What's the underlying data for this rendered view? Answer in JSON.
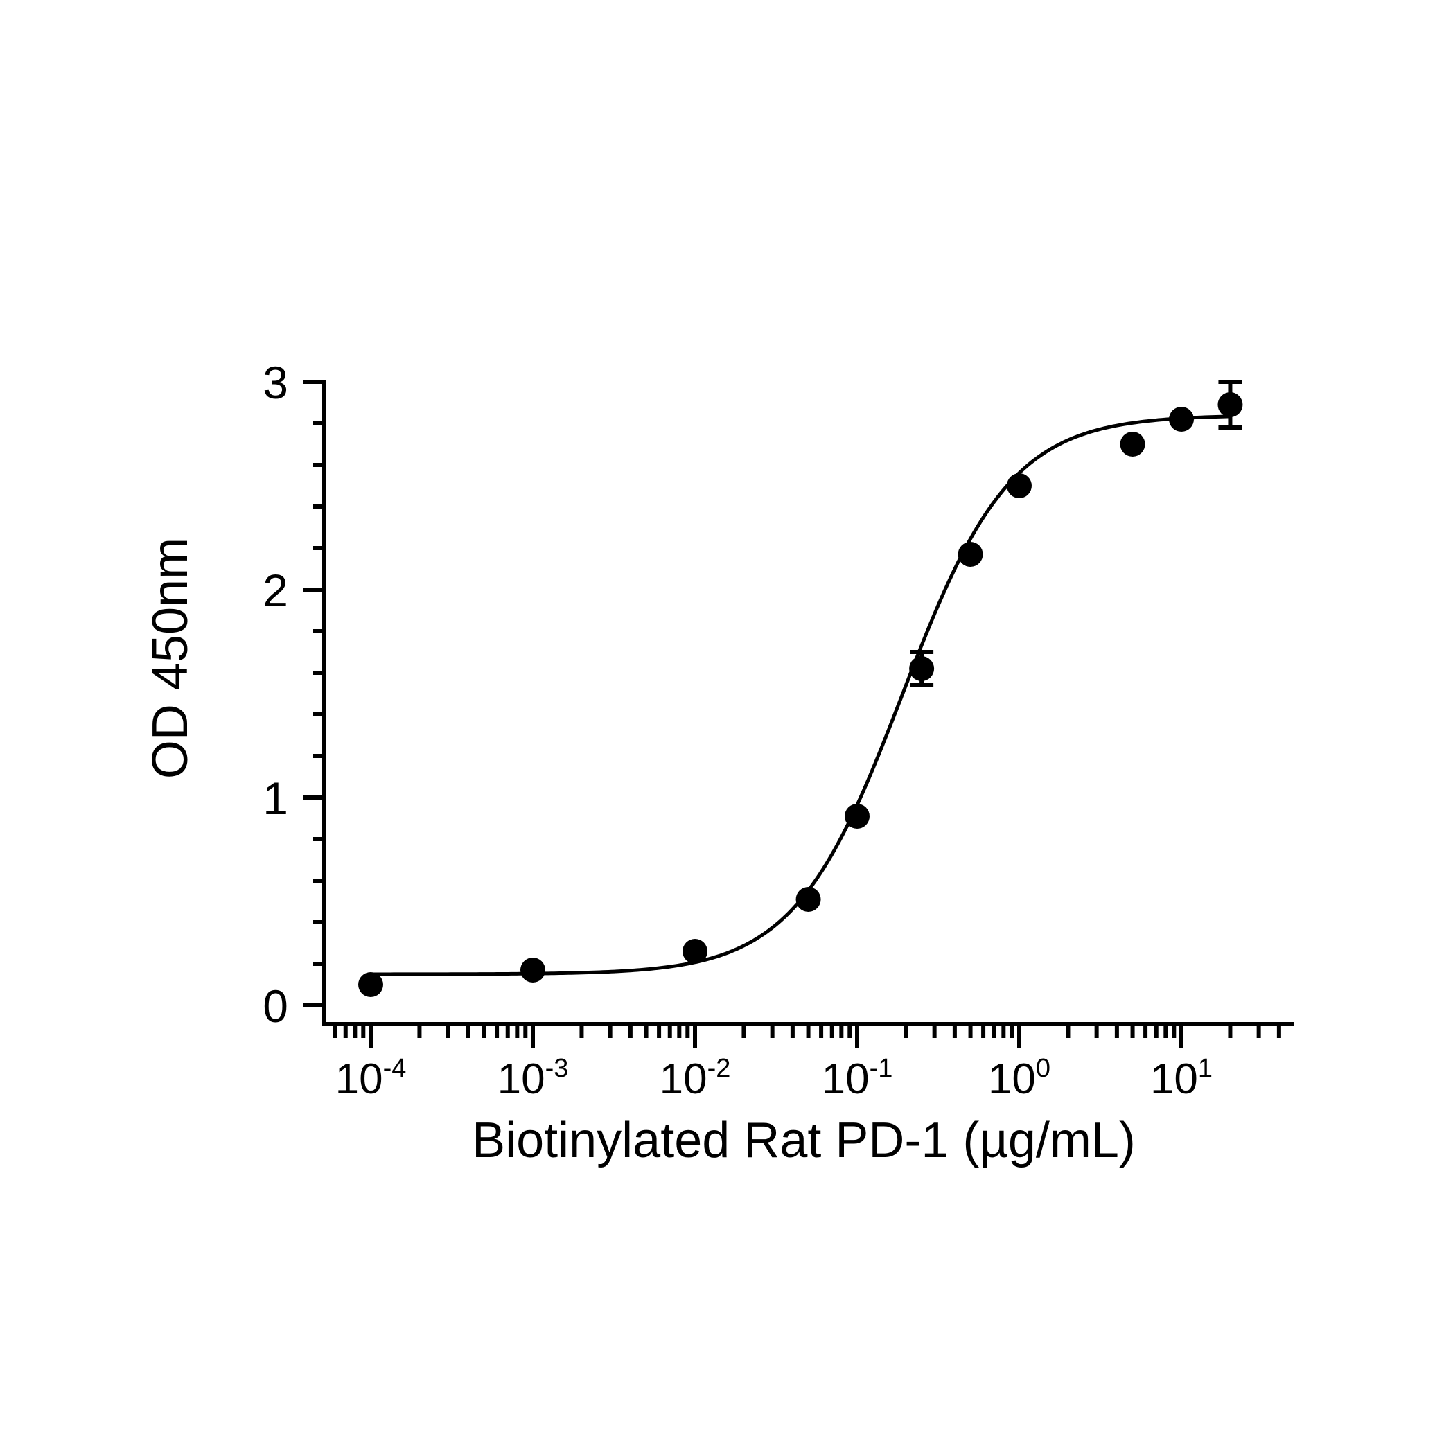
{
  "chart_data": {
    "type": "scatter",
    "title": "",
    "xlabel": "Biotinylated Rat PD-1 (µg/mL)",
    "ylabel": "OD 450nm",
    "x_scale": "log",
    "xlim": [
      5e-05,
      50
    ],
    "ylim": [
      0,
      3
    ],
    "grid": false,
    "legend": "none",
    "y_ticks": [
      {
        "value": 0,
        "label": "0"
      },
      {
        "value": 1,
        "label": "1"
      },
      {
        "value": 2,
        "label": "2"
      },
      {
        "value": 3,
        "label": "3"
      }
    ],
    "x_ticks": [
      {
        "value": 0.0001,
        "base": "10",
        "exp": "-4"
      },
      {
        "value": 0.001,
        "base": "10",
        "exp": "-3"
      },
      {
        "value": 0.01,
        "base": "10",
        "exp": "-2"
      },
      {
        "value": 0.1,
        "base": "10",
        "exp": "-1"
      },
      {
        "value": 1,
        "base": "10",
        "exp": "0"
      },
      {
        "value": 10,
        "base": "10",
        "exp": "1"
      }
    ],
    "series": [
      {
        "marker": "circle",
        "color": "#000000",
        "points": [
          {
            "x": 0.0001,
            "y": 0.1
          },
          {
            "x": 0.001,
            "y": 0.17
          },
          {
            "x": 0.01,
            "y": 0.26
          },
          {
            "x": 0.05,
            "y": 0.51
          },
          {
            "x": 0.1,
            "y": 0.91
          },
          {
            "x": 0.25,
            "y": 1.62,
            "err": 0.08
          },
          {
            "x": 0.5,
            "y": 2.17
          },
          {
            "x": 1,
            "y": 2.5
          },
          {
            "x": 5,
            "y": 2.7
          },
          {
            "x": 10,
            "y": 2.82
          },
          {
            "x": 20,
            "y": 2.89,
            "err": 0.11
          }
        ]
      }
    ],
    "fit": {
      "type": "4PL",
      "bottom": 0.15,
      "top": 2.84,
      "ec50": 0.19,
      "hill": 1.3,
      "x_range": [
        0.0001,
        20
      ]
    }
  }
}
